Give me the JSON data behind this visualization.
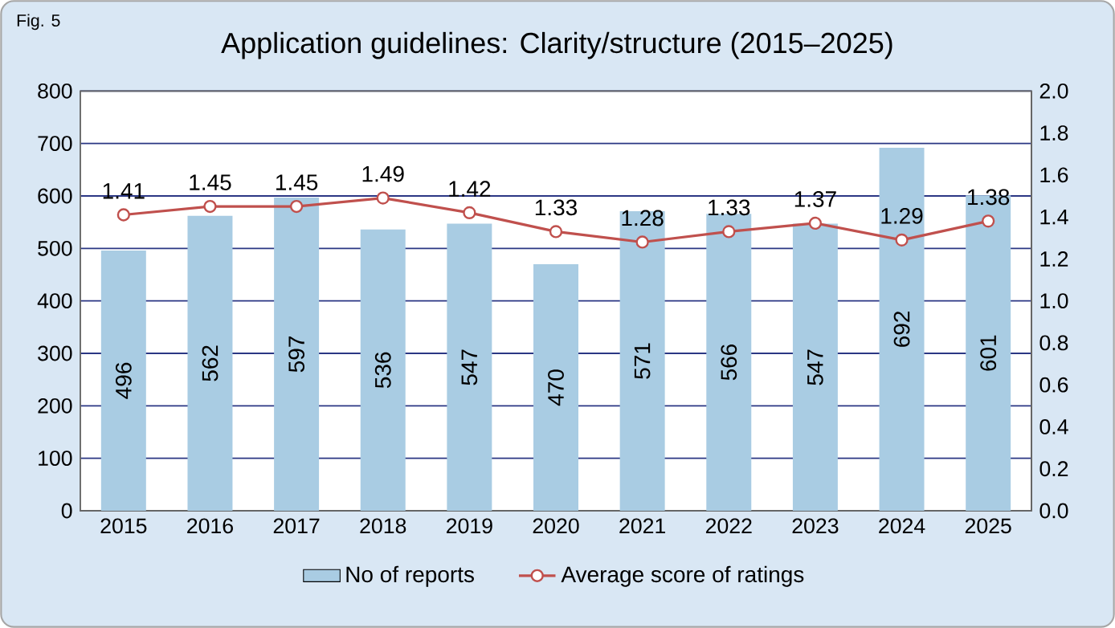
{
  "chart_data": {
    "type": "bar",
    "title": "Application guidelines: Clarity/structure (2015–2025)",
    "annotations": [
      "Fig. 5"
    ],
    "categories": [
      "2015",
      "2016",
      "2017",
      "2018",
      "2019",
      "2020",
      "2021",
      "2022",
      "2023",
      "2024",
      "2025"
    ],
    "series": [
      {
        "name": "No of reports",
        "color": "#a9cce3",
        "values": [
          496,
          562,
          597,
          536,
          547,
          470,
          571,
          566,
          547,
          692,
          601
        ]
      },
      {
        "name": "Average score of ratings",
        "type": "line",
        "axis": "y2",
        "color": "#c0504d",
        "marker": "circle",
        "values": [
          1.41,
          1.45,
          1.45,
          1.49,
          1.42,
          1.33,
          1.28,
          1.33,
          1.37,
          1.29,
          1.38
        ]
      }
    ],
    "ylim": [
      0,
      800
    ],
    "yticks": [
      0,
      100,
      200,
      300,
      400,
      500,
      600,
      700,
      800
    ],
    "y2lim": [
      0,
      2.0
    ],
    "y2ticks": [
      {
        "value": 0,
        "label": "0.0"
      },
      {
        "value": 0.2,
        "label": "0.2"
      },
      {
        "value": 0.4,
        "label": "0.4"
      },
      {
        "value": 0.6,
        "label": "0.6"
      },
      {
        "value": 0.8,
        "label": "0.8"
      },
      {
        "value": 1.0,
        "label": "1.0"
      },
      {
        "value": 1.2,
        "label": "1.2"
      },
      {
        "value": 1.4,
        "label": "1.4"
      },
      {
        "value": 1.6,
        "label": "1.6"
      },
      {
        "value": 1.8,
        "label": "1.8"
      },
      {
        "value": 2.0,
        "label": "2.0"
      }
    ],
    "grid": "y",
    "legend": "bottom",
    "data_labels": true
  }
}
